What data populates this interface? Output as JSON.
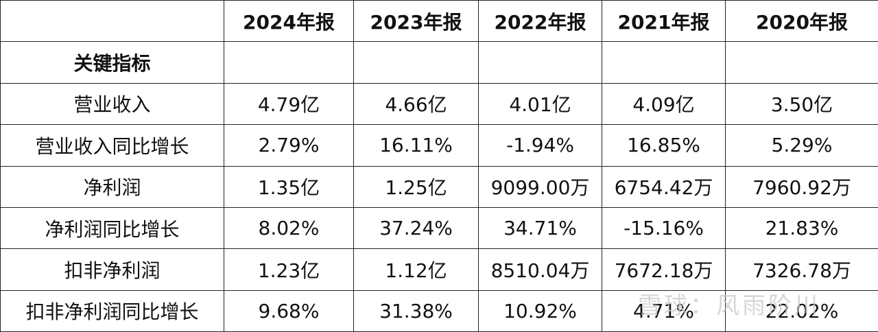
{
  "table": {
    "columns": [
      "2024年报",
      "2023年报",
      "2022年报",
      "2021年报",
      "2020年报"
    ],
    "section": "关键指标",
    "rows": [
      {
        "label": "营业收入",
        "values": [
          "4.79亿",
          "4.66亿",
          "4.01亿",
          "4.09亿",
          "3.50亿"
        ]
      },
      {
        "label": "营业收入同比增长",
        "values": [
          "2.79%",
          "16.11%",
          "-1.94%",
          "16.85%",
          "5.29%"
        ]
      },
      {
        "label": "净利润",
        "values": [
          "1.35亿",
          "1.25亿",
          "9099.00万",
          "6754.42万",
          "7960.92万"
        ]
      },
      {
        "label": "净利润同比增长",
        "values": [
          "8.02%",
          "37.24%",
          "34.71%",
          "-15.16%",
          "21.83%"
        ]
      },
      {
        "label": "扣非净利润",
        "values": [
          "1.23亿",
          "1.12亿",
          "8510.04万",
          "7672.18万",
          "7326.78万"
        ]
      },
      {
        "label": "扣非净利润同比增长",
        "values": [
          "9.68%",
          "31.38%",
          "10.92%",
          "4.71%",
          "22.02%"
        ]
      }
    ]
  },
  "watermark": "雪球：风雨阶川"
}
